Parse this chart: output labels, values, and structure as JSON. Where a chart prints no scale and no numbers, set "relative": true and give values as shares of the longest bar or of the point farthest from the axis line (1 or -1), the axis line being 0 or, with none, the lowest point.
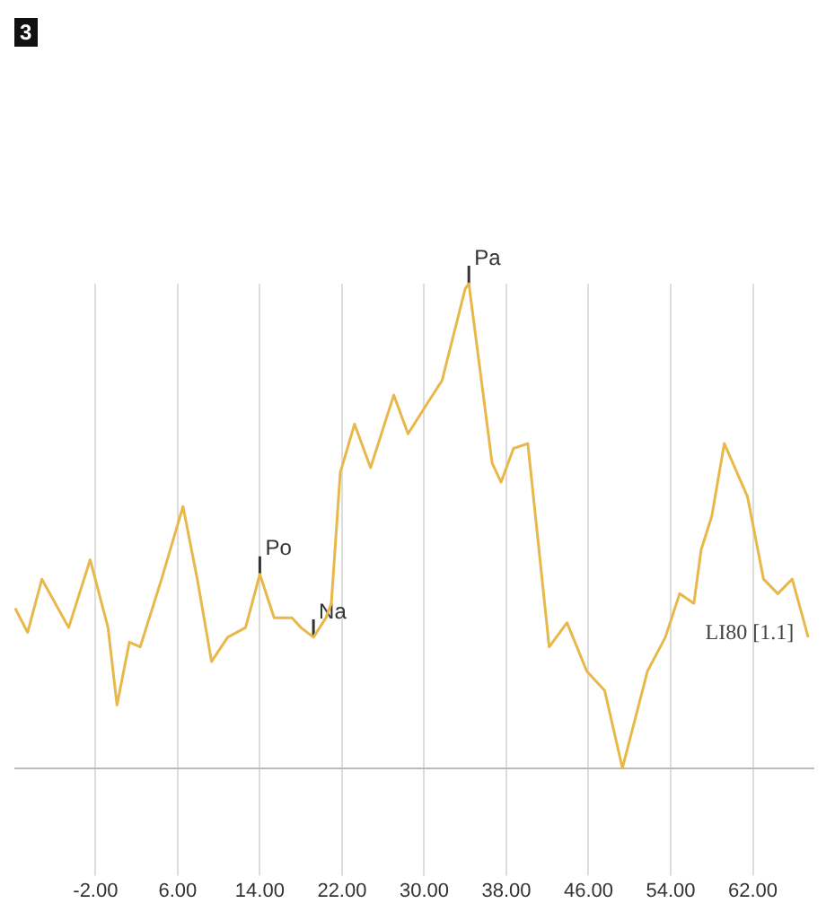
{
  "chart_data": {
    "type": "line",
    "relative": true,
    "grid": "x",
    "legend": false,
    "marker": "none",
    "line_style": "solid",
    "x": [
      -9.83,
      -8.61,
      -7.22,
      -4.61,
      -2.52,
      -0.78,
      0.09,
      1.3,
      2.35,
      4.43,
      6.52,
      7.91,
      9.3,
      10.87,
      12.61,
      14.0,
      15.39,
      17.13,
      18.0,
      19.22,
      20.43,
      20.96,
      21.83,
      23.22,
      24.78,
      27.04,
      28.43,
      30.52,
      31.74,
      34.0,
      34.35,
      36.61,
      37.48,
      38.7,
      40.09,
      42.17,
      43.91,
      45.83,
      47.57,
      49.3,
      51.74,
      53.48,
      54.87,
      56.26,
      56.96,
      58.0,
      59.22,
      61.48,
      63.04,
      64.43,
      65.83,
      67.39
    ],
    "series": [
      {
        "name": "LI80 [1.1]",
        "color": "#e8b84a",
        "values": [
          0.33,
          0.28,
          0.39,
          0.29,
          0.43,
          0.29,
          0.13,
          0.26,
          0.25,
          0.39,
          0.54,
          0.39,
          0.22,
          0.27,
          0.29,
          0.4,
          0.31,
          0.31,
          0.29,
          0.27,
          0.31,
          0.34,
          0.61,
          0.71,
          0.62,
          0.77,
          0.69,
          0.76,
          0.8,
          0.99,
          1.0,
          0.63,
          0.59,
          0.66,
          0.67,
          0.25,
          0.3,
          0.2,
          0.16,
          0.0,
          0.2,
          0.27,
          0.36,
          0.34,
          0.45,
          0.52,
          0.67,
          0.56,
          0.39,
          0.36,
          0.39,
          0.27
        ]
      }
    ],
    "xlim": [
      -9.9,
      67.9
    ],
    "xticks": [
      {
        "value": -2,
        "label": "-2.00"
      },
      {
        "value": 6,
        "label": "6.00"
      },
      {
        "value": 14,
        "label": "14.00"
      },
      {
        "value": 22,
        "label": "22.00"
      },
      {
        "value": 30,
        "label": "30.00"
      },
      {
        "value": 38,
        "label": "38.00"
      },
      {
        "value": 46,
        "label": "46.00"
      },
      {
        "value": 54,
        "label": "54.00"
      },
      {
        "value": 62,
        "label": "62.00"
      }
    ],
    "annotations": [
      {
        "text": "Po",
        "x": 14.0,
        "y": 0.4
      },
      {
        "text": "Na",
        "x": 19.22,
        "y": 0.27
      },
      {
        "text": "Pa",
        "x": 34.35,
        "y": 1.0
      },
      "3"
    ]
  }
}
